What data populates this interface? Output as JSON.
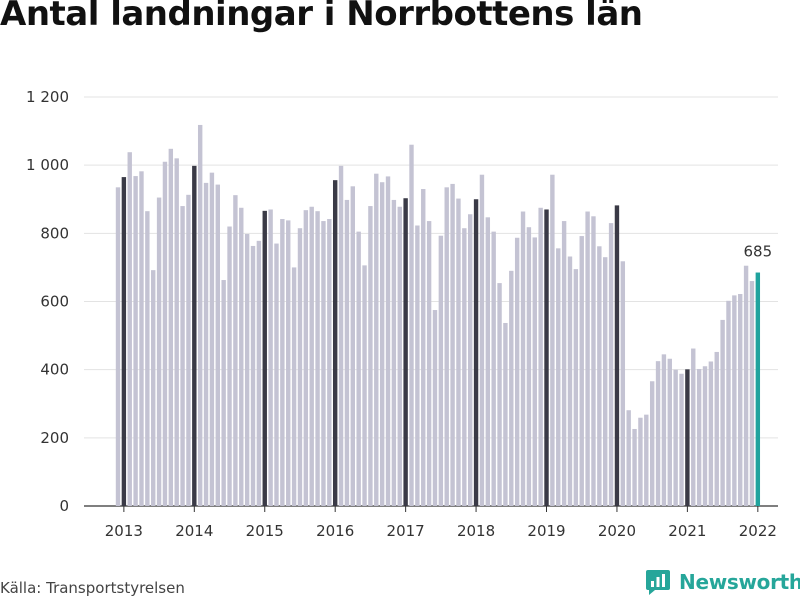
{
  "chart_data": {
    "type": "bar",
    "title": "Antal landningar i Norrbottens län",
    "source": "Källa: Transportstyrelsen",
    "brand": "Newsworthy",
    "ylim": [
      0,
      1200
    ],
    "y_ticks": [
      0,
      200,
      400,
      600,
      800,
      1000,
      1200
    ],
    "y_tick_labels": [
      "0",
      "200",
      "400",
      "600",
      "800",
      "1 000",
      "1 200"
    ],
    "year_labels": [
      "2013",
      "2014",
      "2015",
      "2016",
      "2017",
      "2018",
      "2019",
      "2020",
      "2021",
      "2022"
    ],
    "grid": true,
    "colors": {
      "normal": "#c4c3d3",
      "january": "#3a3a46",
      "latest": "#20a39e"
    },
    "highlight_label": "685",
    "months_start": "2012-12",
    "values": [
      935,
      965,
      1038,
      968,
      982,
      865,
      692,
      905,
      1010,
      1048,
      1020,
      880,
      913,
      998,
      1118,
      948,
      978,
      943,
      663,
      820,
      912,
      875,
      798,
      763,
      778,
      866,
      870,
      770,
      842,
      838,
      700,
      815,
      868,
      878,
      865,
      836,
      842,
      956,
      998,
      898,
      938,
      805,
      706,
      880,
      975,
      950,
      967,
      898,
      878,
      903,
      1060,
      823,
      930,
      836,
      575,
      793,
      935,
      945,
      902,
      815,
      856,
      900,
      972,
      847,
      805,
      654,
      537,
      690,
      787,
      864,
      818,
      788,
      875,
      870,
      972,
      756,
      836,
      732,
      695,
      792,
      864,
      850,
      762,
      730,
      830,
      882,
      718,
      281,
      226,
      259,
      268,
      366,
      425,
      445,
      432,
      400,
      388,
      401,
      462,
      402,
      410,
      424,
      452,
      546,
      602,
      618,
      622,
      705,
      660,
      685
    ]
  }
}
